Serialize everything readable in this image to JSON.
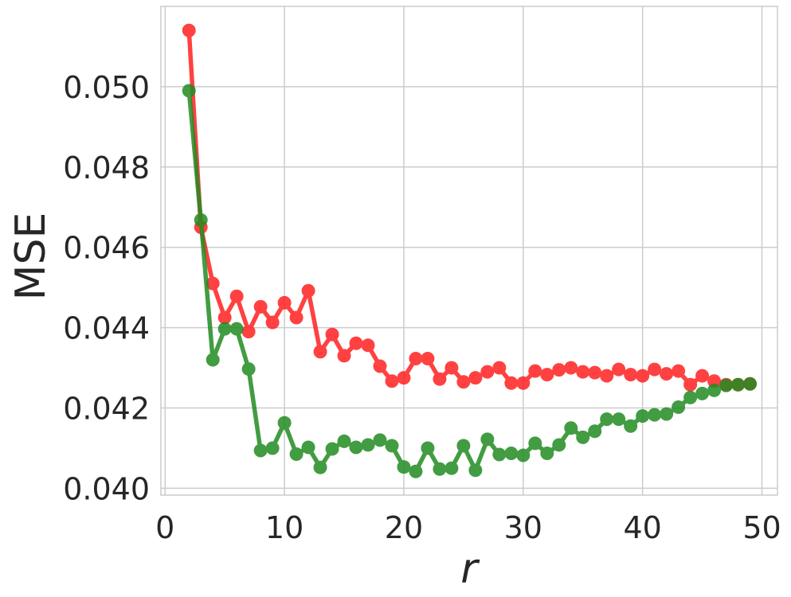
{
  "chart_data": {
    "type": "line",
    "title": "",
    "xlabel": "r",
    "ylabel": "MSE",
    "xlim": [
      -0.35,
      51.3
    ],
    "ylim": [
      0.03983,
      0.052
    ],
    "xticks": [
      0,
      10,
      20,
      30,
      40,
      50
    ],
    "yticks": [
      0.04,
      0.042,
      0.044,
      0.046,
      0.048,
      0.05
    ],
    "xtick_labels": [
      "0",
      "10",
      "20",
      "30",
      "40",
      "50"
    ],
    "ytick_labels": [
      "0.040",
      "0.042",
      "0.044",
      "0.046",
      "0.048",
      "0.050"
    ],
    "grid": true,
    "legend": "none",
    "x": [
      2,
      3,
      4,
      5,
      6,
      7,
      8,
      9,
      10,
      11,
      12,
      13,
      14,
      15,
      16,
      17,
      18,
      19,
      20,
      21,
      22,
      23,
      24,
      25,
      26,
      27,
      28,
      29,
      30,
      31,
      32,
      33,
      34,
      35,
      36,
      37,
      38,
      39,
      40,
      41,
      42,
      43,
      44,
      45,
      46,
      47,
      48,
      49
    ],
    "series": [
      {
        "color": "#ff2020",
        "values": [
          0.0514,
          0.0465,
          0.0451,
          0.04425,
          0.04478,
          0.0439,
          0.04452,
          0.04413,
          0.04462,
          0.04425,
          0.04492,
          0.0434,
          0.04383,
          0.0433,
          0.04361,
          0.04356,
          0.04304,
          0.04267,
          0.04275,
          0.04323,
          0.04323,
          0.04272,
          0.043,
          0.04265,
          0.04275,
          0.0429,
          0.043,
          0.04262,
          0.04262,
          0.04292,
          0.04283,
          0.04295,
          0.043,
          0.0429,
          0.04288,
          0.0428,
          0.04296,
          0.04283,
          0.0428,
          0.04296,
          0.04285,
          0.04292,
          0.04258,
          0.0428,
          0.04267,
          0.04258,
          0.04258,
          0.0426
        ]
      },
      {
        "color": "#228b22",
        "values": [
          0.0499,
          0.04668,
          0.0432,
          0.04397,
          0.04397,
          0.04297,
          0.04094,
          0.041,
          0.04163,
          0.04085,
          0.04102,
          0.04052,
          0.04098,
          0.04117,
          0.04102,
          0.04108,
          0.0412,
          0.04106,
          0.04053,
          0.04042,
          0.041,
          0.04048,
          0.0405,
          0.04106,
          0.04045,
          0.04122,
          0.04084,
          0.04087,
          0.04082,
          0.04112,
          0.04087,
          0.04108,
          0.0415,
          0.04127,
          0.04142,
          0.04172,
          0.04172,
          0.04155,
          0.0418,
          0.04183,
          0.04185,
          0.04202,
          0.04226,
          0.04236,
          0.04244,
          0.04256,
          0.04258,
          0.0426
        ]
      }
    ]
  }
}
